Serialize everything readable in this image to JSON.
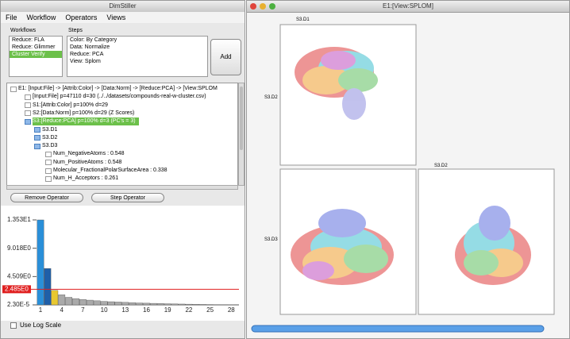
{
  "left_window": {
    "title": "DimStiller",
    "menu": [
      "File",
      "Workflow",
      "Operators",
      "Views"
    ],
    "workflows": {
      "header": "Workflows",
      "items": [
        "Reduce: FLA",
        "Reduce: Glimmer",
        "Cluster Verify"
      ],
      "selected": 2
    },
    "steps": {
      "header": "Steps",
      "items": [
        "Color: By Category",
        "Data: Normalize",
        "Reduce: PCA",
        "View: Splom"
      ]
    },
    "add_button": "Add",
    "tree": {
      "items": [
        "E1: [Input:File] -> [Attrib:Color] -> [Data:Norm] -> [Reduce:PCA] -> [View:SPLOM",
        "[Input:File] p=47110 d=30 (../../datasets/compounds-real-w-cluster.csv)",
        "S1:[Attrib:Color] p=100% d=29",
        "S2:[Data:Norm] p=100% d=29 (Z Scores)",
        "S3:[Reduce:PCA] p=100% d=3 (PC's = 3)",
        "S3.D1",
        "S3.D2",
        "S3.D3",
        "Num_NegativeAtoms : 0.548",
        "Num_PositiveAtoms : 0.548",
        "Molecular_FractionalPolarSurfaceArea : 0.338",
        "Num_H_Acceptors : 0.261"
      ],
      "selected": 4
    },
    "buttons": [
      "Remove Operator",
      "Step Operator"
    ],
    "chart_data": {
      "type": "bar",
      "categories": [
        1,
        null,
        null,
        4,
        null,
        null,
        7,
        null,
        null,
        10,
        null,
        null,
        13,
        null,
        null,
        16,
        null,
        null,
        19,
        null,
        null,
        22,
        null,
        null,
        25,
        null,
        null,
        28
      ],
      "values": [
        13.53,
        5.8,
        2.3,
        1.6,
        1.2,
        1.0,
        0.85,
        0.75,
        0.65,
        0.55,
        0.5,
        0.45,
        0.4,
        0.35,
        0.3,
        0.27,
        0.24,
        0.21,
        0.18,
        0.15,
        0.13,
        0.11,
        0.09,
        0.07,
        0.05,
        0.04,
        0.03,
        0.02
      ],
      "colors": [
        "#2a8fd8",
        "#1f5fa8",
        "#e8c830",
        "#aaaaaa",
        "#aaaaaa",
        "#aaaaaa",
        "#aaaaaa",
        "#aaaaaa",
        "#aaaaaa",
        "#aaaaaa",
        "#aaaaaa",
        "#aaaaaa",
        "#aaaaaa",
        "#aaaaaa",
        "#aaaaaa",
        "#aaaaaa",
        "#aaaaaa",
        "#aaaaaa",
        "#aaaaaa",
        "#aaaaaa",
        "#aaaaaa",
        "#aaaaaa",
        "#aaaaaa",
        "#aaaaaa",
        "#aaaaaa",
        "#aaaaaa",
        "#aaaaaa",
        "#aaaaaa"
      ],
      "ylim": [
        2.3e-05,
        13.53
      ],
      "yticks": [
        {
          "value": 13.53,
          "label": "1.353E1"
        },
        {
          "value": 9.018,
          "label": "9.018E0"
        },
        {
          "value": 4.509,
          "label": "4.509E0"
        },
        {
          "value": 2.3e-05,
          "label": "2.30E-5"
        }
      ],
      "threshold": {
        "value": 2.485,
        "label": "2.485E0",
        "color": "#e02020"
      }
    },
    "log_scale_label": "Use Log Scale"
  },
  "right_window": {
    "title": "E1:[View:SPLOM]",
    "plot_labels": [
      "S3.D1",
      "S3.D2",
      "S3.D3",
      "S3.D2"
    ]
  }
}
